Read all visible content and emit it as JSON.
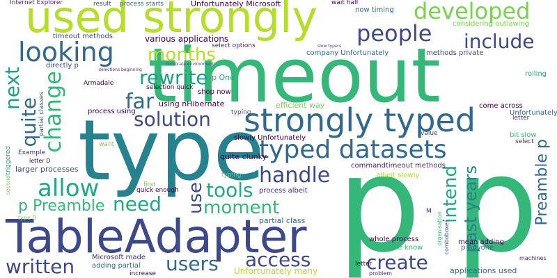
{
  "background": "#ffffff",
  "palette": {
    "yellow": "#b5de2b",
    "lime": "#7ad151",
    "green": "#35b779",
    "teal": "#22a884",
    "cyan": "#1f9e89",
    "steel": "#26828e",
    "blue": "#31688e",
    "indigo": "#3e4989",
    "purple": "#482878",
    "dark": "#440154",
    "pale": "#fde725"
  },
  "words": [
    {
      "text": "timeout",
      "color": "#35b779"
    },
    {
      "text": "p p",
      "color": "#35b779"
    },
    {
      "text": "type",
      "color": "#26828e"
    },
    {
      "text": "TableAdapter",
      "color": "#3e4989"
    },
    {
      "text": "used strongly",
      "color": "#b5de2b"
    },
    {
      "text": "strongly typed",
      "color": "#31688e"
    },
    {
      "text": "typed datasets",
      "color": "#31688e"
    },
    {
      "text": "developed",
      "color": "#7ad151"
    },
    {
      "text": "people",
      "color": "#3e4989"
    },
    {
      "text": "looking",
      "color": "#31688e"
    },
    {
      "text": "include",
      "color": "#3e4989"
    },
    {
      "text": "months",
      "color": "#b5de2b"
    },
    {
      "text": "rewrite",
      "color": "#1f9e89"
    },
    {
      "text": "change",
      "color": "#35b779"
    },
    {
      "text": "next",
      "color": "#1f9e89"
    },
    {
      "text": "quite",
      "color": "#31688e"
    },
    {
      "text": "far",
      "color": "#31688e"
    },
    {
      "text": "solution",
      "color": "#3e4989"
    },
    {
      "text": "allow",
      "color": "#22a884"
    },
    {
      "text": "handle",
      "color": "#3e4989"
    },
    {
      "text": "tools",
      "color": "#22a884"
    },
    {
      "text": "need",
      "color": "#22a884"
    },
    {
      "text": "moment",
      "color": "#35b779"
    },
    {
      "text": "p Preamble",
      "color": "#35b779"
    },
    {
      "text": "use",
      "color": "#3e4989"
    },
    {
      "text": "intend",
      "color": "#22a884"
    },
    {
      "text": "past years",
      "color": "#26828e"
    },
    {
      "text": "Preamble p",
      "color": "#31688e"
    },
    {
      "text": "written",
      "color": "#3e4989"
    },
    {
      "text": "users",
      "color": "#31688e"
    },
    {
      "text": "access",
      "color": "#3e4989"
    },
    {
      "text": "create",
      "color": "#3e4989"
    },
    {
      "text": "Internet Explorer",
      "color": "#482878"
    },
    {
      "text": "result",
      "color": "#3e4989"
    },
    {
      "text": "process starts",
      "color": "#31688e"
    },
    {
      "text": "Unfortunately Microsoft",
      "color": "#440154"
    },
    {
      "text": "wait half",
      "color": "#440154"
    },
    {
      "text": "now timing",
      "color": "#31688e"
    },
    {
      "text": "considering outlawing",
      "color": "#7ad151"
    },
    {
      "text": "timeout methods",
      "color": "#3e4989"
    },
    {
      "text": "various applications",
      "color": "#440154"
    },
    {
      "text": "select options",
      "color": "#482878"
    },
    {
      "text": "company Unfortunately",
      "color": "#31688e"
    },
    {
      "text": "methods private",
      "color": "#3e4989"
    },
    {
      "text": "slow typers",
      "color": "#3e4989"
    },
    {
      "text": "corporate environment",
      "color": "#3e4989"
    },
    {
      "text": "directly p",
      "color": "#3e4989"
    },
    {
      "text": "selections beginning",
      "color": "#482878"
    },
    {
      "text": "p One",
      "color": "#22a884"
    },
    {
      "text": "selection quick",
      "color": "#440154"
    },
    {
      "text": "Armadale",
      "color": "#440154"
    },
    {
      "text": "shop now",
      "color": "#440154"
    },
    {
      "text": "rolling",
      "color": "#22a884"
    },
    {
      "text": "using nHibernate",
      "color": "#440154"
    },
    {
      "text": "partial classes",
      "color": "#31688e"
    },
    {
      "text": "process using",
      "color": "#440154"
    },
    {
      "text": "efficient way",
      "color": "#7ad151"
    },
    {
      "text": "come across",
      "color": "#440154"
    },
    {
      "text": "Unfortunately",
      "color": "#31688e"
    },
    {
      "text": "letter",
      "color": "#482878"
    },
    {
      "text": "typing",
      "color": "#3e4989"
    },
    {
      "text": "slowly Unfortunately",
      "color": "#440154"
    },
    {
      "text": "value",
      "color": "#3e4989"
    },
    {
      "text": "bit slow",
      "color": "#35b779"
    },
    {
      "text": "select",
      "color": "#482878"
    },
    {
      "text": "Example",
      "color": "#482878"
    },
    {
      "text": "want",
      "color": "#7ad151"
    },
    {
      "text": "quite clunky",
      "color": "#440154"
    },
    {
      "text": "letter D",
      "color": "#440154"
    },
    {
      "text": "larger processes",
      "color": "#3e4989"
    },
    {
      "text": "commandtimeout methods",
      "color": "#482878"
    },
    {
      "text": "typing",
      "color": "#7ad151"
    },
    {
      "text": "albeit slowly",
      "color": "#b5de2b"
    },
    {
      "text": "first",
      "color": "#7ad151"
    },
    {
      "text": "process albeit",
      "color": "#482878"
    },
    {
      "text": "quick enough",
      "color": "#440154"
    },
    {
      "text": "type D",
      "color": "#7ad151"
    },
    {
      "text": "partial class",
      "color": "#31688e"
    },
    {
      "text": "M",
      "color": "#482878"
    },
    {
      "text": "whole process",
      "color": "#440154"
    },
    {
      "text": "mean adding",
      "color": "#440154"
    },
    {
      "text": "Anyone know",
      "color": "#35b779"
    },
    {
      "text": "p Anyone",
      "color": "#31688e"
    },
    {
      "text": "Microsoft made",
      "color": "#482878"
    },
    {
      "text": "adding partial",
      "color": "#31688e"
    },
    {
      "text": "increase",
      "color": "#440154"
    },
    {
      "text": "Unfortunately many",
      "color": "#b5de2b"
    },
    {
      "text": "letter",
      "color": "#440154"
    },
    {
      "text": "problem",
      "color": "#482878"
    },
    {
      "text": "applications used",
      "color": "#31688e"
    },
    {
      "text": "machines",
      "color": "#482878"
    },
    {
      "text": "triggered",
      "color": "#22a884"
    },
    {
      "text": "second",
      "color": "#7ad151"
    },
    {
      "text": "organisation",
      "color": "#35b779"
    },
    {
      "text": "comboboxes",
      "color": "#3e4989"
    }
  ]
}
